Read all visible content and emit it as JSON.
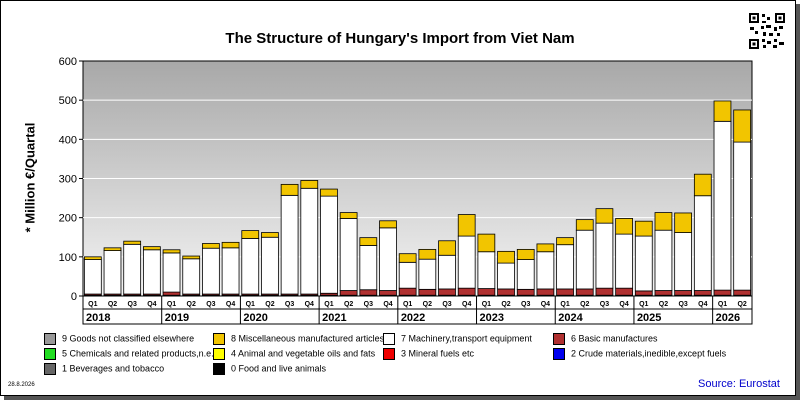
{
  "chart_data": {
    "type": "bar",
    "stacked": true,
    "title": "The Structure of Hungary's Import from Viet Nam",
    "ylabel": "* Million €/Quartal",
    "ylim": [
      0,
      600
    ],
    "yticks": [
      0,
      100,
      200,
      300,
      400,
      500,
      600
    ],
    "categories": [
      "Q1",
      "Q2",
      "Q3",
      "Q4",
      "Q1",
      "Q2",
      "Q3",
      "Q4",
      "Q1",
      "Q2",
      "Q3",
      "Q4",
      "Q1",
      "Q2",
      "Q3",
      "Q4",
      "Q1",
      "Q2",
      "Q3",
      "Q4",
      "Q1",
      "Q2",
      "Q3",
      "Q4",
      "Q1",
      "Q2",
      "Q3",
      "Q4",
      "Q1",
      "Q2",
      "Q3",
      "Q4",
      "Q1",
      "Q2"
    ],
    "years": [
      "2018",
      "2019",
      "2020",
      "2021",
      "2022",
      "2023",
      "2024",
      "2025",
      "2026"
    ],
    "series": [
      {
        "name": "0 Food and live animals",
        "color": "#000000",
        "values": [
          2,
          2,
          2,
          2,
          2,
          2,
          2,
          2,
          2,
          2,
          2,
          2,
          2,
          2,
          2,
          2,
          2,
          2,
          2,
          2,
          2,
          2,
          2,
          2,
          2,
          2,
          2,
          2,
          2,
          2,
          2,
          2,
          2,
          2
        ]
      },
      {
        "name": "6 Basic manufactures",
        "color": "#b03030",
        "values": [
          3,
          3,
          3,
          3,
          8,
          3,
          3,
          3,
          3,
          3,
          3,
          3,
          5,
          12,
          14,
          12,
          18,
          15,
          16,
          18,
          17,
          16,
          15,
          16,
          16,
          16,
          18,
          18,
          11,
          12,
          12,
          12,
          13,
          13
        ]
      },
      {
        "name": "7 Machinery,transport equipment",
        "color": "#ffffff",
        "values": [
          88,
          111,
          127,
          113,
          100,
          90,
          117,
          118,
          142,
          145,
          252,
          270,
          248,
          184,
          113,
          160,
          66,
          77,
          86,
          133,
          94,
          66,
          76,
          95,
          113,
          150,
          166,
          138,
          140,
          154,
          148,
          242,
          431,
          378
        ]
      },
      {
        "name": "8 Miscellaneous manufactured articles",
        "color": "#f2c500",
        "values": [
          7,
          7,
          8,
          8,
          8,
          7,
          12,
          14,
          20,
          12,
          28,
          20,
          18,
          15,
          20,
          18,
          22,
          25,
          37,
          55,
          45,
          30,
          26,
          20,
          18,
          27,
          37,
          40,
          38,
          45,
          50,
          55,
          52,
          82
        ]
      },
      {
        "name": "9 Goods not classified elsewhere",
        "color": "#999999",
        "values": [
          0,
          0,
          0,
          0,
          0,
          0,
          0,
          0,
          0,
          0,
          0,
          0,
          0,
          0,
          0,
          0,
          0,
          0,
          0,
          0,
          0,
          0,
          0,
          0,
          0,
          0,
          0,
          0,
          0,
          0,
          0,
          0,
          0,
          0
        ]
      },
      {
        "name": "5 Chemicals and related products,n.e.s.",
        "color": "#22dd22",
        "values": [
          0,
          0,
          0,
          0,
          0,
          0,
          0,
          0,
          0,
          0,
          0,
          0,
          0,
          0,
          0,
          0,
          0,
          0,
          0,
          0,
          0,
          0,
          0,
          0,
          0,
          0,
          0,
          0,
          0,
          0,
          0,
          0,
          0,
          0
        ]
      },
      {
        "name": "4 Animal and vegetable oils and fats",
        "color": "#ffff00",
        "values": [
          0,
          0,
          0,
          0,
          0,
          0,
          0,
          0,
          0,
          0,
          0,
          0,
          0,
          0,
          0,
          0,
          0,
          0,
          0,
          0,
          0,
          0,
          0,
          0,
          0,
          0,
          0,
          0,
          0,
          0,
          0,
          0,
          0,
          0
        ]
      },
      {
        "name": "3 Mineral fuels etc",
        "color": "#ee0000",
        "values": [
          0,
          0,
          0,
          0,
          0,
          0,
          0,
          0,
          0,
          0,
          0,
          0,
          0,
          0,
          0,
          0,
          0,
          0,
          0,
          0,
          0,
          0,
          0,
          0,
          0,
          0,
          0,
          0,
          0,
          0,
          0,
          0,
          0,
          0
        ]
      },
      {
        "name": "2 Crude materials,inedible,except fuels",
        "color": "#0000ee",
        "values": [
          0,
          0,
          0,
          0,
          0,
          0,
          0,
          0,
          0,
          0,
          0,
          0,
          0,
          0,
          0,
          0,
          0,
          0,
          0,
          0,
          0,
          0,
          0,
          0,
          0,
          0,
          0,
          0,
          0,
          0,
          0,
          0,
          0,
          0
        ]
      },
      {
        "name": "1 Beverages and tobacco",
        "color": "#666666",
        "values": [
          0,
          0,
          0,
          0,
          0,
          0,
          0,
          0,
          0,
          0,
          0,
          0,
          0,
          0,
          0,
          0,
          0,
          0,
          0,
          0,
          0,
          0,
          0,
          0,
          0,
          0,
          0,
          0,
          0,
          0,
          0,
          0,
          0,
          0
        ]
      }
    ],
    "stack_order": [
      0,
      1,
      2,
      3
    ],
    "legend_placement": "bottom",
    "grid": true
  },
  "legend": [
    {
      "name": "9 Goods not classified elsewhere",
      "color": "#999999"
    },
    {
      "name": "8 Miscellaneous manufactured articles",
      "color": "#f2c500"
    },
    {
      "name": "7 Machinery,transport equipment",
      "color": "#ffffff"
    },
    {
      "name": "6 Basic manufactures",
      "color": "#b03030"
    },
    {
      "name": "5 Chemicals and related products,n.e.s.",
      "color": "#22dd22"
    },
    {
      "name": "4 Animal and vegetable oils and fats",
      "color": "#ffff00"
    },
    {
      "name": "3 Mineral fuels etc",
      "color": "#ee0000"
    },
    {
      "name": "2 Crude materials,inedible,except fuels",
      "color": "#0000ee"
    },
    {
      "name": "1 Beverages and tobacco",
      "color": "#666666"
    },
    {
      "name": "0 Food and live animals",
      "color": "#000000"
    }
  ],
  "date": "28.8.2026",
  "source": "Source: Eurostat",
  "qr_icon": "qr-code-icon"
}
